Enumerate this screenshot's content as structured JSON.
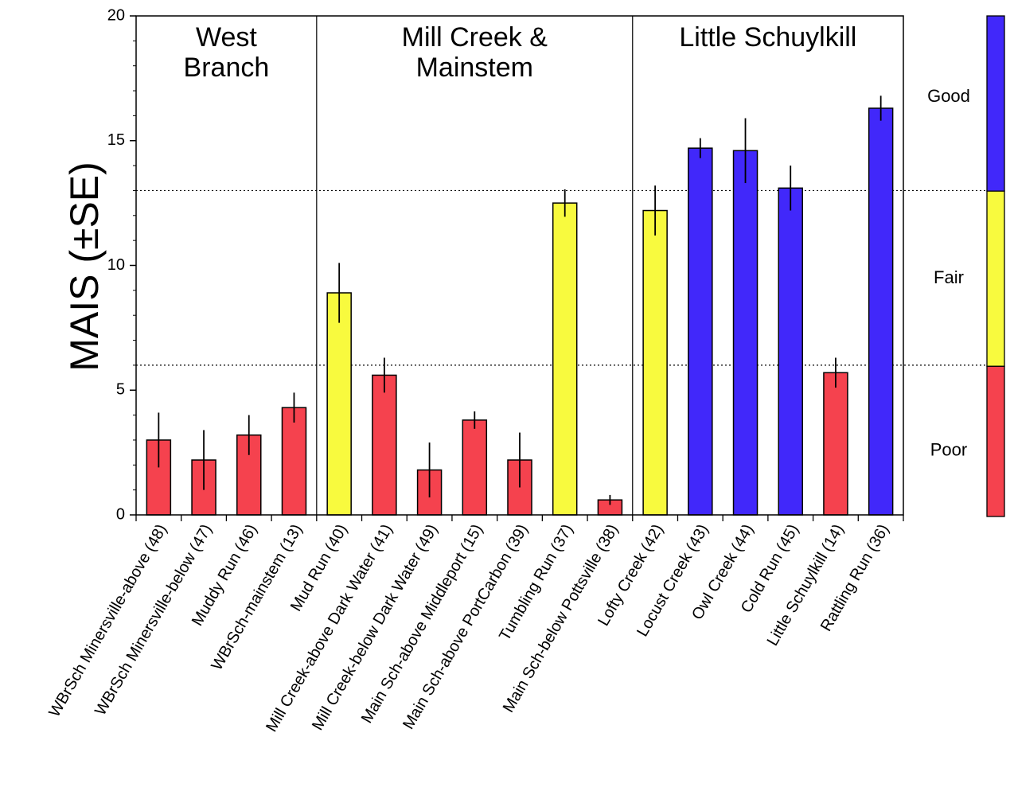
{
  "chart_data": {
    "type": "bar",
    "ylabel": "MAIS (±SE)",
    "xlabel": "",
    "ylim": [
      0,
      20
    ],
    "yticks": [
      0,
      5,
      10,
      15,
      20
    ],
    "thresholds": [
      6,
      13
    ],
    "categories": [
      "WBrSch Minersville-above (48)",
      "WBrSch Minersville-below (47)",
      "Muddy Run (46)",
      "WBrSch-mainstem (13)",
      "Mud Run (40)",
      "Mill Creek-above Dark Water (41)",
      "Mill Creek-below Dark Water (49)",
      "Main Sch-above Middleport (15)",
      "Main Sch-above PortCarbon (39)",
      "Tumbling Run (37)",
      "Main Sch-below Pottsville (38)",
      "Lofty Creek (42)",
      "Locust Creek (43)",
      "Owl Creek (44)",
      "Cold Run (45)",
      "Little Schuylkill (14)",
      "Rattling Run (36)"
    ],
    "values": [
      3.0,
      2.2,
      3.2,
      4.3,
      8.9,
      5.6,
      1.8,
      3.8,
      2.2,
      12.5,
      0.6,
      12.2,
      14.7,
      14.6,
      13.1,
      5.7,
      16.3
    ],
    "se": [
      1.1,
      1.2,
      0.8,
      0.6,
      1.2,
      0.7,
      1.1,
      0.35,
      1.1,
      0.55,
      0.2,
      1.0,
      0.4,
      1.3,
      0.9,
      0.6,
      0.5
    ],
    "classes": [
      "Poor",
      "Poor",
      "Poor",
      "Poor",
      "Fair",
      "Poor",
      "Poor",
      "Poor",
      "Poor",
      "Fair",
      "Poor",
      "Fair",
      "Good",
      "Good",
      "Good",
      "Poor",
      "Good"
    ],
    "groups": [
      {
        "lines": [
          "West",
          "Branch"
        ],
        "start": 0,
        "end": 3
      },
      {
        "lines": [
          "Mill Creek &",
          "Mainstem"
        ],
        "start": 4,
        "end": 10
      },
      {
        "lines": [
          "Little Schuylkill"
        ],
        "start": 11,
        "end": 16
      }
    ],
    "legend": [
      {
        "label": "Good",
        "range": [
          13,
          20
        ],
        "color": "#4128fa"
      },
      {
        "label": "Fair",
        "range": [
          6,
          13
        ],
        "color": "#f8fa3e"
      },
      {
        "label": "Poor",
        "range": [
          0,
          6
        ],
        "color": "#f5424e"
      }
    ],
    "colors": {
      "Good": "#4128fa",
      "Fair": "#f8fa3e",
      "Poor": "#f5424e"
    },
    "grid": false
  }
}
